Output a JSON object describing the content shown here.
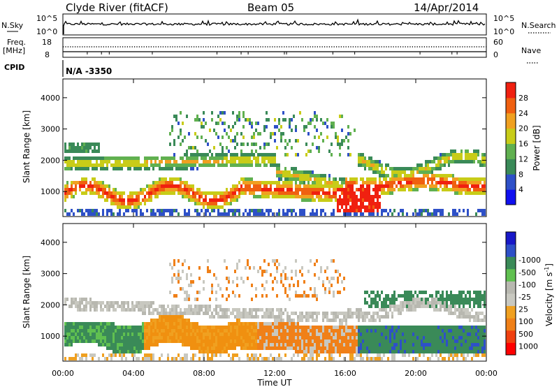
{
  "header": {
    "station": "Clyde River (fitACF)",
    "beam": "Beam 05",
    "date": "14/Apr/2014"
  },
  "nsky_panel": {
    "left_label": "N.Sky",
    "right_label": "N.Search",
    "ticks_left": [
      "10^5",
      "10^0"
    ],
    "ticks_right": [
      "10^5",
      "10^0"
    ]
  },
  "freq_panel": {
    "left_label_1": "Freq.",
    "left_label_2": "[MHz]",
    "ticks_left": [
      "18",
      "8"
    ],
    "right_label": "Nave",
    "ticks_right": [
      "60",
      "0"
    ]
  },
  "cpid": {
    "label": "CPID",
    "value": "N/A -3350"
  },
  "colors": {
    "power": [
      "#1010f0",
      "#2e50c8",
      "#3a8a58",
      "#60b050",
      "#c8cc18",
      "#f0a020",
      "#f06010",
      "#f02010"
    ],
    "velocity": [
      "#ff0000",
      "#f06010",
      "#f0a020",
      "#b8b8b0",
      "#c8c8c0",
      "#60c050",
      "#3a8a58",
      "#2e50c8",
      "#1818c8"
    ]
  },
  "chart_data": [
    {
      "type": "heatmap",
      "quantity": "Power",
      "ylabel": "Slant Range [km]",
      "yticks": [
        1000,
        2000,
        3000,
        4000
      ],
      "ylim": [
        200,
        4600
      ],
      "xlim_hours": [
        0,
        24
      ],
      "colorbar_label": "Power [dB]",
      "colorbar_ticks": [
        "4",
        "8",
        "12",
        "16",
        "20",
        "24",
        "28"
      ],
      "colorbar_range": [
        0,
        30
      ]
    },
    {
      "type": "heatmap",
      "quantity": "Velocity",
      "ylabel": "Slant Range [km]",
      "yticks": [
        1000,
        2000,
        3000,
        4000
      ],
      "ylim": [
        200,
        4600
      ],
      "xlim_hours": [
        0,
        24
      ],
      "colorbar_label": "Velocity [m s",
      "colorbar_label_sup": "-1",
      "colorbar_label_end": "]",
      "colorbar_ticks": [
        "1000",
        "500",
        "100",
        "25",
        "-25",
        "-100",
        "-500",
        "-1000"
      ]
    }
  ],
  "xaxis": {
    "ticks": [
      "00:00",
      "04:00",
      "08:00",
      "12:00",
      "16:00",
      "20:00",
      "00:00"
    ],
    "label": "Time UT"
  }
}
